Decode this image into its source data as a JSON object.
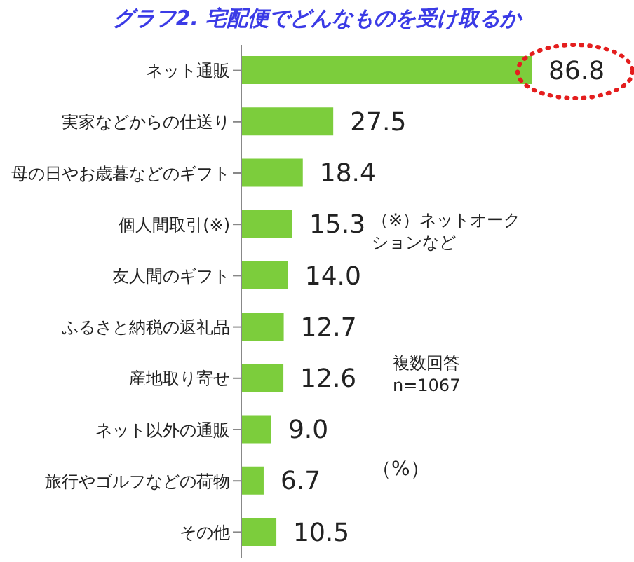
{
  "chart_data": {
    "type": "bar",
    "orientation": "horizontal",
    "title": "グラフ2. 宅配便でどんなものを受け取るか",
    "categories": [
      "ネット通販",
      "実家などからの仕送り",
      "母の日やお歳暮などのギフト",
      "個人間取引(※)",
      "友人間のギフト",
      "ふるさと納税の返礼品",
      "産地取り寄せ",
      "ネット以外の通販",
      "旅行やゴルフなどの荷物",
      "その他"
    ],
    "values": [
      86.8,
      27.5,
      18.4,
      15.3,
      14.0,
      12.7,
      12.6,
      9.0,
      6.7,
      10.5
    ],
    "value_labels": [
      "86.8",
      "27.5",
      "18.4",
      "15.3",
      "14.0",
      "12.7",
      "12.6",
      "9.0",
      "6.7",
      "10.5"
    ],
    "color": "#7ccd3c",
    "annotations": [
      "（※）ネットオークションなど",
      "複数回答\nn=1067",
      "（%）"
    ]
  }
}
